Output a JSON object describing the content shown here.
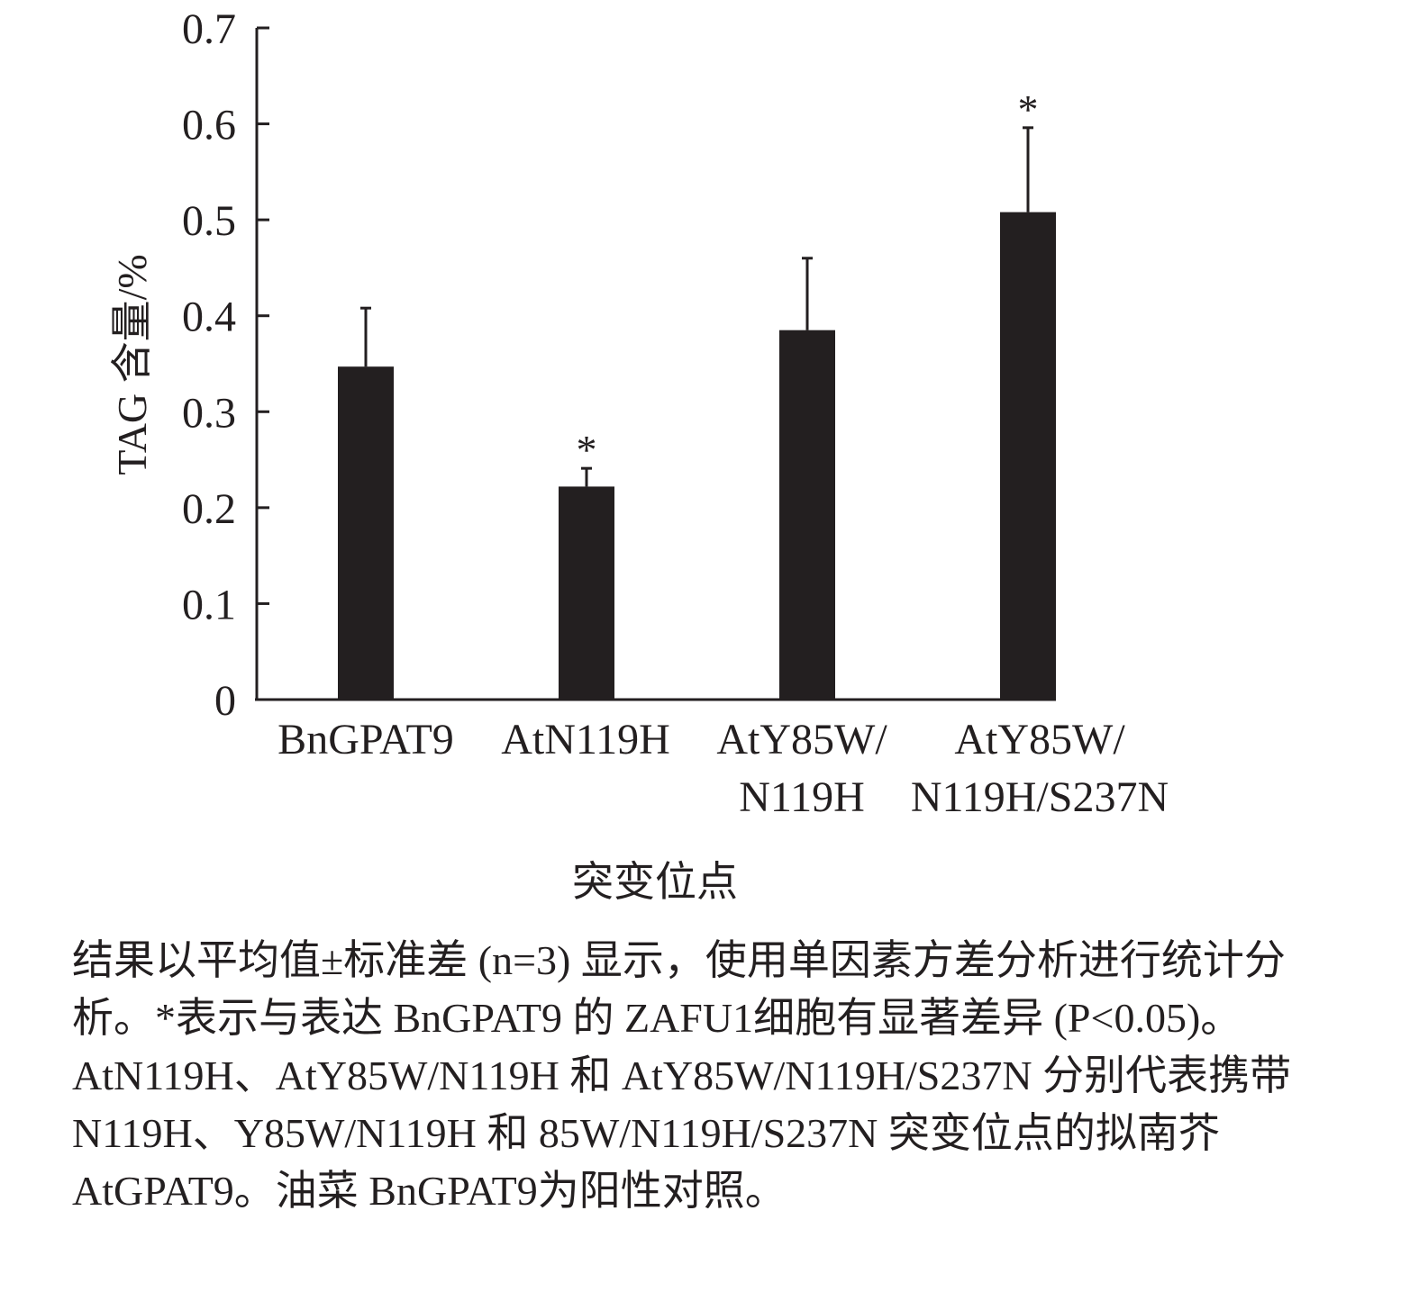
{
  "chart_data": {
    "type": "bar",
    "xlabel": "突变位点",
    "ylabel": "TAG 含量/%",
    "ylim": [
      0,
      0.7
    ],
    "yticks": [
      "0",
      "0.1",
      "0.2",
      "0.3",
      "0.4",
      "0.5",
      "0.6",
      "0.7"
    ],
    "categories": [
      [
        "BnGPAT9"
      ],
      [
        "AtN119H"
      ],
      [
        "AtY85W/",
        "N119H"
      ],
      [
        "AtY85W/",
        "N119H/S237N"
      ]
    ],
    "values": [
      0.347,
      0.222,
      0.385,
      0.508
    ],
    "error_upper": [
      0.408,
      0.241,
      0.46,
      0.596
    ],
    "significance": [
      "",
      "*",
      "",
      "*"
    ],
    "bar_color": "#231f20",
    "grid": false,
    "legend": "none"
  },
  "caption": "结果以平均值±标准差 (n=3) 显示，使用单因素方差分析进行统计分析。*表示与表达 BnGPAT9 的 ZAFU1细胞有显著差异 (P<0.05)。AtN119H、AtY85W/N119H 和 AtY85W/N119H/S237N 分别代表携带 N119H、Y85W/N119H 和 85W/N119H/S237N 突变位点的拟南芥AtGPAT9。油菜 BnGPAT9为阳性对照。"
}
